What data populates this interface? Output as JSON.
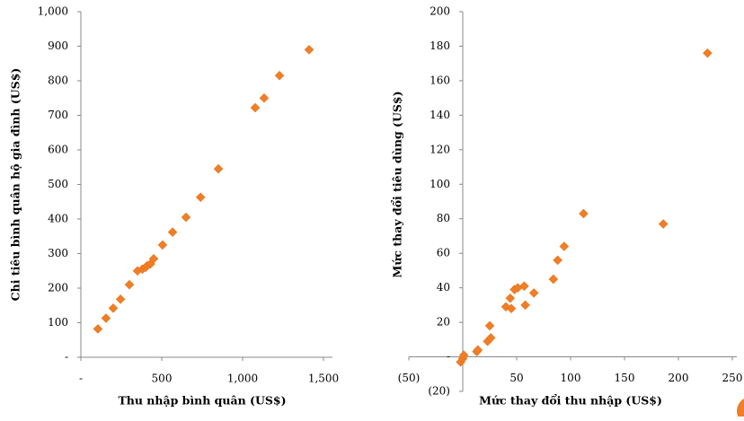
{
  "chart_data": [
    {
      "type": "scatter",
      "xlabel": "Thu nhập bình quân (US$)",
      "ylabel": "Chi tiêu bình quân hộ gia đình (US$)",
      "color": "#f07e26",
      "xlim": [
        0,
        1500
      ],
      "ylim": [
        0,
        1000
      ],
      "xticks": [
        {
          "value": 0,
          "label": "-"
        },
        500,
        {
          "value": 1000,
          "label": "1,000"
        },
        {
          "value": 1500,
          "label": "1,500"
        }
      ],
      "yticks": [
        {
          "value": 0,
          "label": "-"
        },
        100,
        200,
        300,
        400,
        500,
        600,
        700,
        800,
        900,
        {
          "value": 1000,
          "label": "1,000"
        }
      ],
      "x": [
        105,
        155,
        200,
        245,
        300,
        350,
        380,
        400,
        410,
        430,
        450,
        505,
        567,
        650,
        740,
        850,
        1078,
        1133,
        1228,
        1411
      ],
      "y": [
        82,
        113,
        142,
        168,
        210,
        250,
        255,
        260,
        265,
        270,
        285,
        325,
        362,
        405,
        463,
        545,
        722,
        750,
        815,
        890
      ]
    },
    {
      "type": "scatter",
      "xlabel": "Mức thay đổi thu nhập (US$)",
      "ylabel": "Mức thay đổi tiêu dùng (US$)",
      "color": "#f07e26",
      "xlim": [
        -50,
        250
      ],
      "ylim": [
        -20,
        200
      ],
      "xticks": [
        {
          "value": -50,
          "label": "(50)"
        },
        50,
        100,
        150,
        200,
        250
      ],
      "yticks": [
        {
          "value": -20,
          "label": "(20)"
        },
        {
          "value": 0,
          "label": "-"
        },
        20,
        40,
        60,
        80,
        100,
        120,
        140,
        160,
        180,
        200
      ],
      "x": [
        -2,
        0,
        1,
        13,
        14,
        23,
        26,
        25,
        40,
        45,
        44,
        48,
        51,
        57,
        58,
        66,
        84,
        88,
        94,
        112,
        186,
        227
      ],
      "y": [
        -3,
        -1,
        1,
        3,
        4,
        9,
        11,
        18,
        29,
        28,
        34,
        39,
        40,
        41,
        30,
        37,
        45,
        56,
        64,
        83,
        77,
        176
      ]
    }
  ]
}
